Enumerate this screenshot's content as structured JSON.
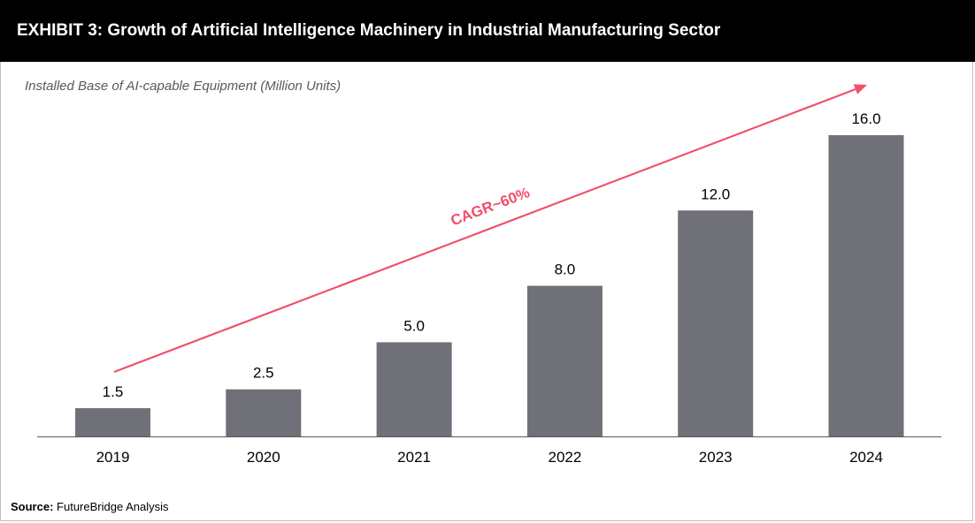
{
  "header": {
    "title": "EXHIBIT 3: Growth of Artificial Intelligence Machinery in Industrial Manufacturing Sector"
  },
  "chart_data": {
    "type": "bar",
    "title": "EXHIBIT 3: Growth of Artificial Intelligence Machinery in Industrial Manufacturing Sector",
    "subtitle": "Installed Base of AI-capable Equipment (Million Units)",
    "categories": [
      "2019",
      "2020",
      "2021",
      "2022",
      "2023",
      "2024"
    ],
    "values": [
      1.5,
      2.5,
      5.0,
      8.0,
      12.0,
      16.0
    ],
    "value_labels": [
      "1.5",
      "2.5",
      "5.0",
      "8.0",
      "12.0",
      "16.0"
    ],
    "ylim": [
      0,
      16.0
    ],
    "grid": false,
    "legend": "none",
    "annotation": {
      "text": "CAGR~60%"
    },
    "colors": {
      "bar": "#707078",
      "arrow": "#f0506a",
      "header_bg": "#000000"
    }
  },
  "source": {
    "label": "Source:",
    "text": "FutureBridge Analysis"
  }
}
